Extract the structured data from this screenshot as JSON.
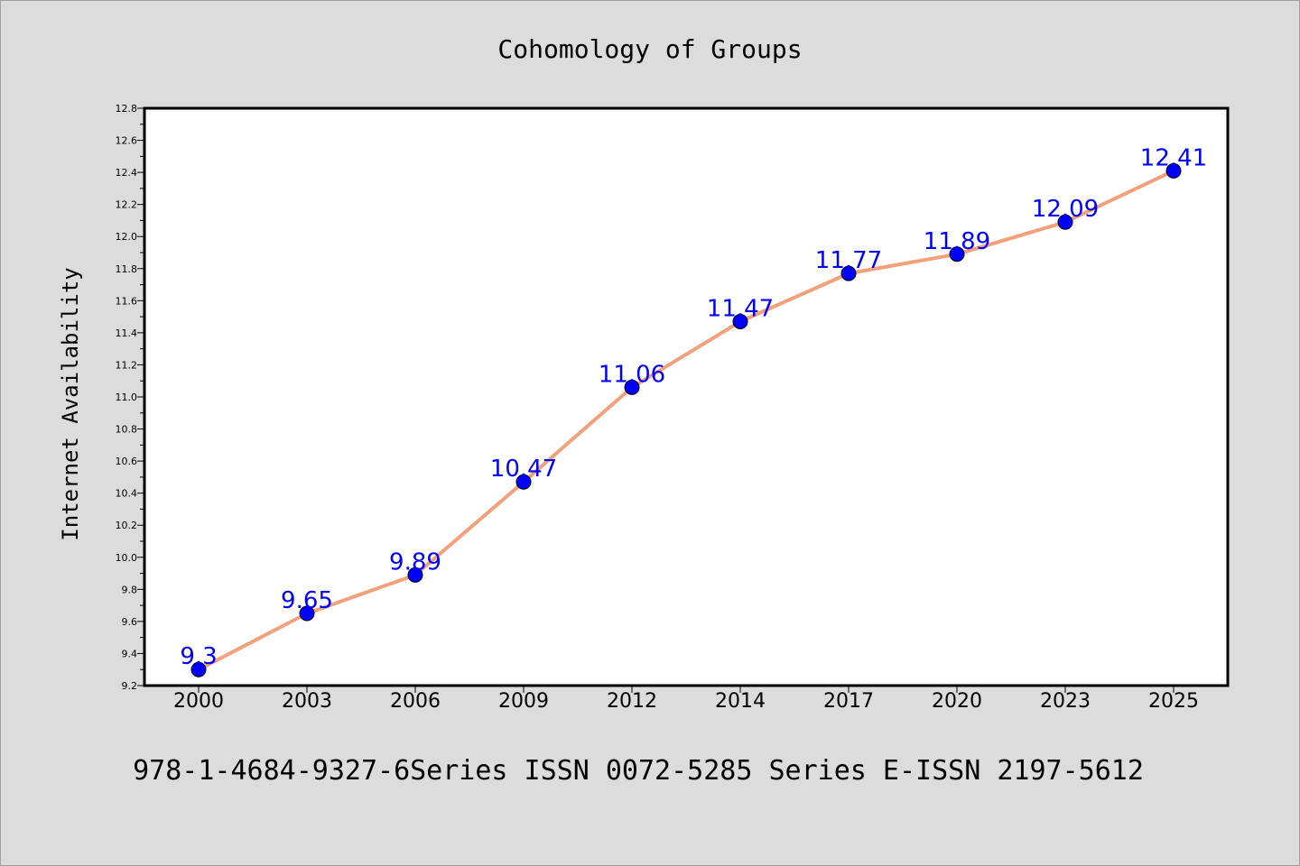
{
  "chart_data": {
    "type": "line",
    "title": "Cohomology of Groups",
    "ylabel": "Internet Availability",
    "xlabel": "",
    "categories": [
      "2000",
      "2003",
      "2006",
      "2009",
      "2012",
      "2014",
      "2017",
      "2020",
      "2023",
      "2025"
    ],
    "series": [
      {
        "values": [
          9.3,
          9.65,
          9.89,
          10.47,
          11.06,
          11.47,
          11.77,
          11.89,
          12.09,
          12.41
        ],
        "labels": [
          "9.3",
          "9.65",
          "9.89",
          "10.47",
          "11.06",
          "11.47",
          "11.77",
          "11.89",
          "12.09",
          "12.41"
        ]
      }
    ],
    "ylim": [
      9.2,
      12.8
    ],
    "yticks": [
      "9.2",
      "9.4",
      "9.6",
      "9.8",
      "10.0",
      "10.2",
      "10.4",
      "10.6",
      "10.8",
      "11.0",
      "11.2",
      "11.4",
      "11.6",
      "11.8",
      "12.0",
      "12.2",
      "12.4",
      "12.6",
      "12.8"
    ],
    "grid": false,
    "legend": "none",
    "colors": {
      "line": "#f4a07a",
      "marker": "#0000ff",
      "data_label": "#0000ff",
      "plot_bg": "#ffffff",
      "page_bg": "#dcdcdc"
    }
  },
  "footer": "978-1-4684-9327-6Series ISSN 0072-5285 Series E-ISSN 2197-5612"
}
